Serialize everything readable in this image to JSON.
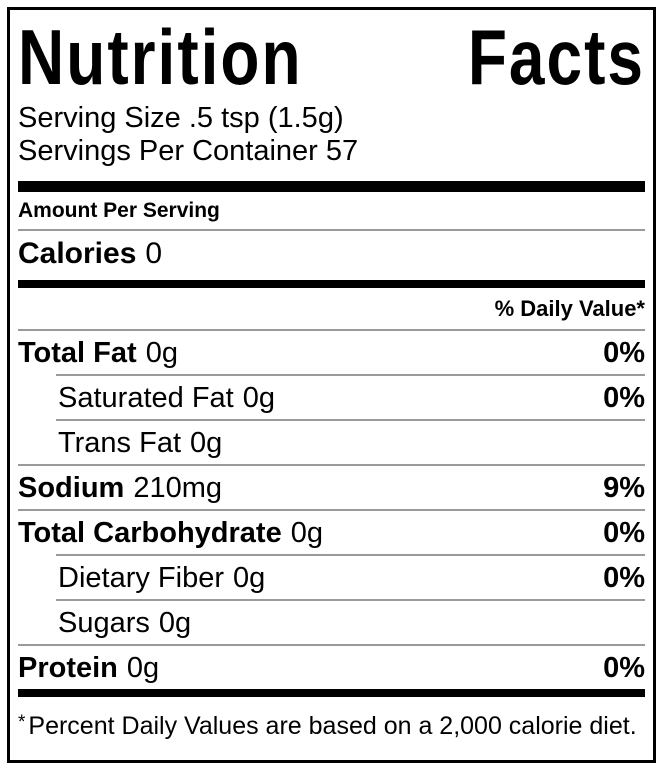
{
  "title": {
    "word1": "Nutrition",
    "word2": "Facts"
  },
  "serving": {
    "size_line": "Serving Size .5 tsp (1.5g)",
    "per_container_line": "Servings Per Container 57"
  },
  "sections": {
    "amount_per_serving": "Amount Per Serving",
    "daily_value_header": "% Daily Value*"
  },
  "calories": {
    "label": "Calories",
    "value": "0"
  },
  "nutrients": [
    {
      "name": "Total Fat",
      "amount": "0g",
      "daily_value": "0%"
    },
    {
      "name": "Saturated Fat",
      "amount": "0g",
      "daily_value": "0%"
    },
    {
      "name": "Trans Fat",
      "amount": "0g",
      "daily_value": ""
    },
    {
      "name": "Sodium",
      "amount": "210mg",
      "daily_value": "9%"
    },
    {
      "name": "Total Carbohydrate",
      "amount": "0g",
      "daily_value": "0%"
    },
    {
      "name": "Dietary Fiber",
      "amount": "0g",
      "daily_value": "0%"
    },
    {
      "name": "Sugars",
      "amount": "0g",
      "daily_value": ""
    },
    {
      "name": "Protein",
      "amount": "0g",
      "daily_value": "0%"
    }
  ],
  "footnote": {
    "marker": "*",
    "text": "Percent Daily Values are based on a 2,000 calorie diet."
  },
  "colors": {
    "text": "#000000",
    "background": "#ffffff",
    "separator": "#9a9a9a",
    "divider": "#000000"
  }
}
